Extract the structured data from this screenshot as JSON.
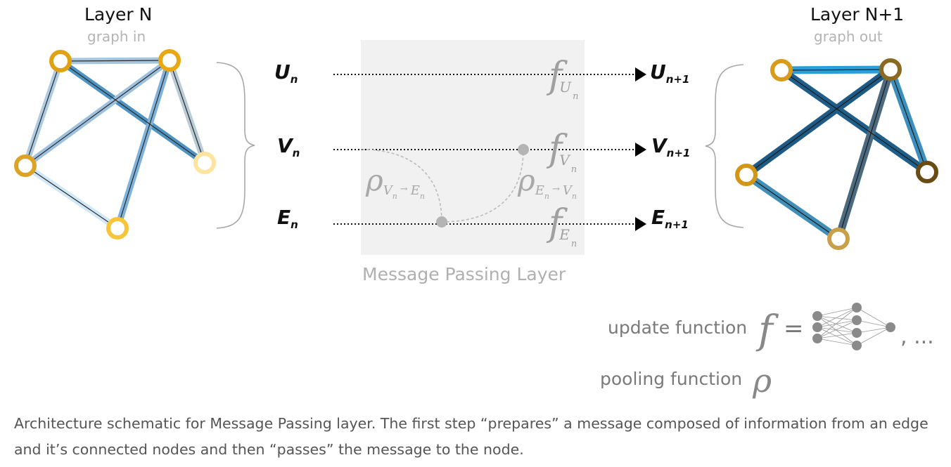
{
  "left_graph": {
    "title": "Layer N",
    "subtitle": "graph in"
  },
  "right_graph": {
    "title": "Layer N+1",
    "subtitle": "graph out"
  },
  "inputs": [
    {
      "symbol": "U",
      "sub": "n"
    },
    {
      "symbol": "V",
      "sub": "n"
    },
    {
      "symbol": "E",
      "sub": "n"
    }
  ],
  "outputs": [
    {
      "symbol": "U",
      "sub": "n+1"
    },
    {
      "symbol": "V",
      "sub": "n+1"
    },
    {
      "symbol": "E",
      "sub": "n+1"
    }
  ],
  "update_functions": [
    {
      "symbol": "f",
      "sub": "U",
      "subsub": "n"
    },
    {
      "symbol": "f",
      "sub": "V",
      "subsub": "n"
    },
    {
      "symbol": "f",
      "sub": "E",
      "subsub": "n"
    }
  ],
  "pooling_labels": [
    {
      "symbol": "ρ",
      "sub_from": "V",
      "sub_from_sub": "n",
      "arrow": "→",
      "sub_to": "E",
      "sub_to_sub": "n"
    },
    {
      "symbol": "ρ",
      "sub_from": "E",
      "sub_from_sub": "n",
      "arrow": "→",
      "sub_to": "V",
      "sub_to_sub": "n"
    }
  ],
  "layer_label": "Message Passing Layer",
  "legend": {
    "update_label": "update function",
    "update_symbol": "f",
    "equals": "=",
    "ellipsis": ", ...",
    "pooling_label": "pooling function",
    "pooling_symbol": "ρ"
  },
  "caption": "Architecture schematic for Message Passing layer. The first step “prepares” a message composed of information from an edge and it’s connected nodes and then “passes” the message to the node.",
  "colors": {
    "node_gold": "#e0a213",
    "node_light": "#fde4a0",
    "edge_blue": "#6fa8d6",
    "edge_dark": "#1f4e79",
    "box_gray": "#f1f1f1"
  }
}
